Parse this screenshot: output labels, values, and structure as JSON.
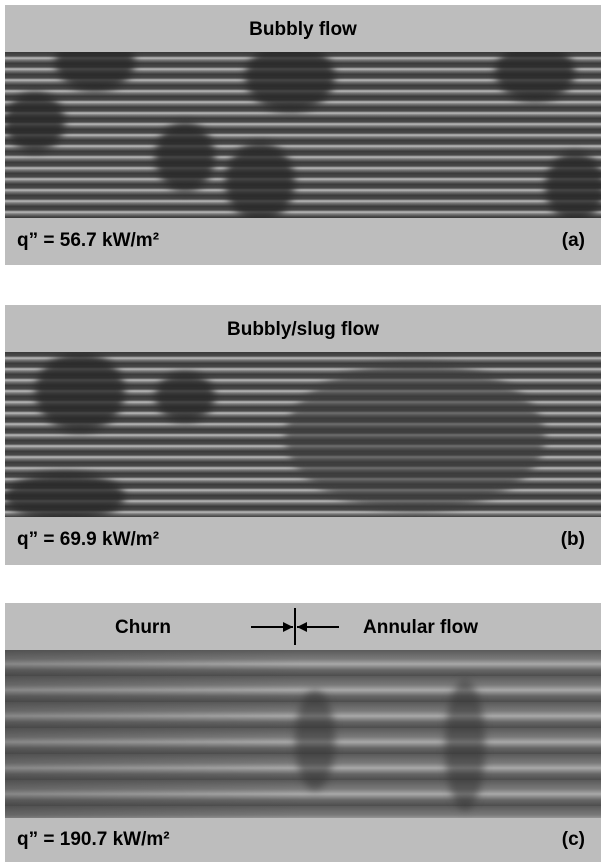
{
  "panels": [
    {
      "title": "Bubbly flow",
      "heat_flux": "q” = 56.7 kW/m²",
      "label": "(a)"
    },
    {
      "title": "Bubbly/slug flow",
      "heat_flux": "q” = 69.9 kW/m²",
      "label": "(b)"
    },
    {
      "titles": [
        "Churn",
        "Annular flow"
      ],
      "heat_flux": "q” = 190.7 kW/m²",
      "label": "(c)"
    }
  ]
}
